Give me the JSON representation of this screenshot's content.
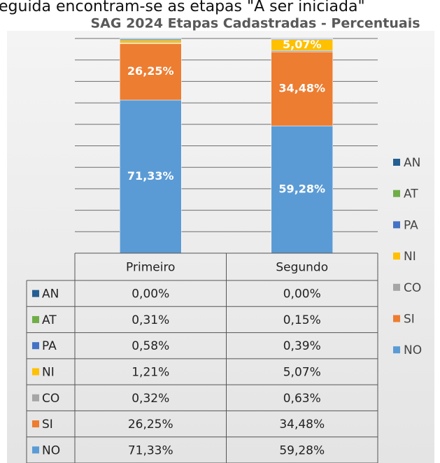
{
  "caption": "eguida encontram-se as etapas \"A ser iniciada\"",
  "chart_data": {
    "type": "stacked_bar_table",
    "title": "SAG 2024 Etapas Cadastradas - Percentuais",
    "categories": [
      "Primeiro",
      "Segundo"
    ],
    "series": [
      {
        "name": "AN",
        "color": "#255e91",
        "values": [
          0.0,
          0.0
        ],
        "value_labels": [
          "0,00%",
          "0,00%"
        ]
      },
      {
        "name": "AT",
        "color": "#70ad47",
        "values": [
          0.31,
          0.15
        ],
        "value_labels": [
          "0,31%",
          "0,15%"
        ]
      },
      {
        "name": "PA",
        "color": "#4472c4",
        "values": [
          0.58,
          0.39
        ],
        "value_labels": [
          "0,58%",
          "0,39%"
        ]
      },
      {
        "name": "NI",
        "color": "#ffc000",
        "values": [
          1.21,
          5.07
        ],
        "value_labels": [
          "1,21%",
          "5,07%"
        ]
      },
      {
        "name": "CO",
        "color": "#a5a5a5",
        "values": [
          0.32,
          0.63
        ],
        "value_labels": [
          "0,32%",
          "0,63%"
        ]
      },
      {
        "name": "SI",
        "color": "#ed7d31",
        "values": [
          26.25,
          34.48
        ],
        "value_labels": [
          "26,25%",
          "34,48%"
        ]
      },
      {
        "name": "NO",
        "color": "#5b9bd5",
        "values": [
          71.33,
          59.28
        ],
        "value_labels": [
          "71,33%",
          "59,28%"
        ]
      }
    ],
    "ylim": [
      0,
      100
    ],
    "yticks": [
      0,
      10,
      20,
      30,
      40,
      50,
      60,
      70,
      80,
      90,
      100
    ],
    "ytick_labels": false,
    "grid": true,
    "legend": "right"
  }
}
